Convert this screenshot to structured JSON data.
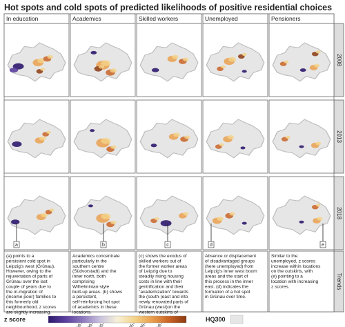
{
  "chart_data": {
    "type": "heatmap",
    "title": "Hot spots and cold spots of predicted likelihoods of positive residential choices",
    "columns": [
      "In education",
      "Academics",
      "Skilled workers",
      "Unemployed",
      "Pensioners"
    ],
    "rows": [
      "2008",
      "2013",
      "2018"
    ],
    "trends_label": "Trends",
    "trends": [
      "(a) points to a persistent cold spot in Leipzig's west (Grünau). However, owing to the rejuvenation of parts of Grünau over the last couple of years due to the in-migration of (income poor) families to this formerly old neighbourhood, z scores are slightly increasing.",
      "Academics concentrate particularly in the southern centre (Südvorstadt) and the inner north, both comprising Wilhelminian-style built-up areas. (b) shows a persistent, self-reinforcing hot spot of academics in these locations.",
      "(c) shows the exodus of skilled workers out of the former worker areas of Leipzig due to steadily rising housing costs in line with their gentrification and their \"academization\" towards the (south-)east and into newly renovated parts of Grünau (west)on the western outskirts of Leipzig.",
      "Absence or displacement of disadvantaged groups (here unemployed) from Leipzig's inner west boom areas and the start of this process in the inner east. (d) indicates the formation of a hot spot in Grünau over time.",
      "Similar to the unemployed, z scores increase within locations on the outskirts, with (e) pointing to a location with increasing z scores."
    ],
    "annotations": [
      "a",
      "b",
      "c",
      "d",
      "e"
    ],
    "legend": {
      "label": "z score",
      "ticks": [
        "-2.58",
        "-1.96",
        "-1.65",
        "1.65",
        "1.96",
        "2.58"
      ],
      "colors": [
        "#2d1a6e",
        "#5b3f9e",
        "#8e79bd",
        "#c9c1de",
        "#f7f1d8",
        "#f4d38a",
        "#e9a04f",
        "#c96426",
        "#8c3a12"
      ],
      "hq_label": "HQ300"
    },
    "hotspots": [
      [
        {
          "cold": [
            [
              -0.6,
              0.2,
              0.9
            ],
            [
              -0.75,
              0.35,
              0.7
            ]
          ],
          "hot": [
            [
              0.05,
              0.05,
              0.8
            ],
            [
              0.35,
              -0.1,
              0.6
            ],
            [
              0.1,
              0.4,
              0.5
            ]
          ]
        },
        {
          "cold": [
            [
              -0.3,
              -0.35,
              0.5
            ]
          ],
          "hot": [
            [
              0.0,
              0.15,
              1.0
            ],
            [
              0.25,
              0.45,
              0.7
            ],
            [
              -0.15,
              0.3,
              0.6
            ]
          ]
        },
        {
          "cold": [
            [
              -0.45,
              0.35,
              0.6
            ]
          ],
          "hot": [
            [
              0.1,
              -0.1,
              0.7
            ],
            [
              0.45,
              0.0,
              0.6
            ]
          ]
        },
        {
          "cold": [
            [
              0.3,
              0.4,
              0.4
            ]
          ],
          "hot": [
            [
              -0.2,
              0.0,
              0.8
            ],
            [
              -0.5,
              0.3,
              0.5
            ],
            [
              0.2,
              -0.2,
              0.5
            ]
          ]
        },
        {
          "cold": [
            [
              0.05,
              0.35,
              0.5
            ]
          ],
          "hot": [
            [
              0.4,
              0.25,
              0.6
            ],
            [
              -0.6,
              0.1,
              0.5
            ],
            [
              0.45,
              -0.3,
              0.5
            ]
          ]
        }
      ],
      [
        {
          "cold": [
            [
              -0.65,
              0.25,
              0.8
            ]
          ],
          "hot": [
            [
              0.1,
              0.1,
              0.7
            ],
            [
              0.3,
              -0.15,
              0.5
            ]
          ]
        },
        {
          "cold": [
            [
              -0.35,
              -0.3,
              0.4
            ]
          ],
          "hot": [
            [
              0.0,
              0.2,
              1.0
            ],
            [
              0.25,
              0.45,
              0.6
            ]
          ]
        },
        {
          "cold": [
            [
              -0.5,
              0.3,
              0.5
            ]
          ],
          "hot": [
            [
              0.15,
              -0.05,
              0.7
            ],
            [
              0.5,
              0.05,
              0.6
            ]
          ]
        },
        {
          "cold": [
            [
              0.25,
              0.4,
              0.4
            ]
          ],
          "hot": [
            [
              -0.25,
              0.05,
              0.7
            ],
            [
              -0.55,
              0.35,
              0.5
            ]
          ]
        },
        {
          "cold": [
            [
              0.0,
              0.35,
              0.4
            ]
          ],
          "hot": [
            [
              0.45,
              0.3,
              0.6
            ],
            [
              -0.55,
              0.05,
              0.5
            ]
          ]
        }
      ],
      [
        {
          "cold": [
            [
              -0.7,
              0.3,
              0.7
            ]
          ],
          "hot": [
            [
              0.15,
              0.1,
              0.7
            ],
            [
              0.4,
              -0.1,
              0.5
            ]
          ]
        },
        {
          "cold": [
            [
              -0.4,
              -0.35,
              0.4
            ]
          ],
          "hot": [
            [
              0.0,
              0.15,
              1.0
            ],
            [
              0.25,
              0.4,
              0.6
            ]
          ]
        },
        {
          "cold": [
            [
              -0.1,
              0.35,
              0.9
            ]
          ],
          "hot": [
            [
              0.45,
              0.05,
              0.6
            ],
            [
              -0.5,
              0.25,
              0.5
            ]
          ]
        },
        {
          "cold": [
            [
              0.3,
              0.35,
              0.4
            ]
          ],
          "hot": [
            [
              -0.6,
              0.25,
              0.7
            ],
            [
              -0.2,
              0.05,
              0.6
            ]
          ]
        },
        {
          "cold": [
            [
              0.0,
              0.3,
              0.4
            ]
          ],
          "hot": [
            [
              0.5,
              0.25,
              0.6
            ],
            [
              0.45,
              -0.3,
              0.5
            ]
          ]
        }
      ]
    ]
  }
}
